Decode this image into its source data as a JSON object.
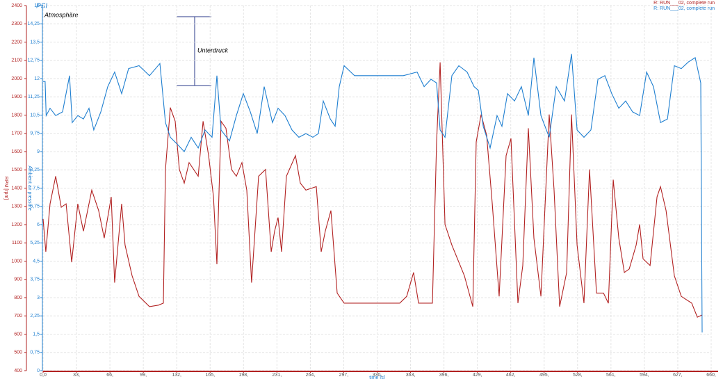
{
  "chart_data": {
    "type": "line",
    "x_label": "time [s]",
    "y_label": "RPM [rpm]",
    "y2_label": "Ambient air pressure",
    "y2_unit": "PSI",
    "annotations": [
      "Atmosphäre",
      "Unterdruck"
    ],
    "grid": true,
    "legend": "top-right",
    "xlim": [
      0,
      660
    ],
    "xticks": [
      {
        "value": 0,
        "label": "0,0"
      },
      {
        "value": 33,
        "label": "33,"
      },
      {
        "value": 66,
        "label": "66,"
      },
      {
        "value": 99,
        "label": "99,"
      },
      {
        "value": 132,
        "label": "132,"
      },
      {
        "value": 165,
        "label": "165,"
      },
      {
        "value": 198,
        "label": "198,"
      },
      {
        "value": 231,
        "label": "231,"
      },
      {
        "value": 264,
        "label": "264,"
      },
      {
        "value": 297,
        "label": "297,"
      },
      {
        "value": 330,
        "label": "330,"
      },
      {
        "value": 363,
        "label": "363,"
      },
      {
        "value": 396,
        "label": "396,"
      },
      {
        "value": 429,
        "label": "429,"
      },
      {
        "value": 462,
        "label": "462,"
      },
      {
        "value": 495,
        "label": "495,"
      },
      {
        "value": 528,
        "label": "528,"
      },
      {
        "value": 561,
        "label": "561,"
      },
      {
        "value": 594,
        "label": "594,"
      },
      {
        "value": 627,
        "label": "627,"
      },
      {
        "value": 660,
        "label": "660,"
      }
    ],
    "ylim": [
      400,
      2400
    ],
    "yticks": [
      400,
      500,
      600,
      700,
      800,
      900,
      1000,
      1100,
      1200,
      1300,
      1400,
      1500,
      1600,
      1700,
      1800,
      1900,
      2000,
      2100,
      2200,
      2300,
      2400
    ],
    "y2lim": [
      0,
      15
    ],
    "y2ticks": [
      0,
      {
        "value": 0.75,
        "label": "0,75"
      },
      {
        "value": 1.5,
        "label": "1,5"
      },
      {
        "value": 2.25,
        "label": "2,25"
      },
      3,
      {
        "value": 3.75,
        "label": "3,75"
      },
      {
        "value": 4.5,
        "label": "4,5"
      },
      {
        "value": 5.25,
        "label": "5,25"
      },
      6,
      {
        "value": 6.75,
        "label": "6,75"
      },
      {
        "value": 7.5,
        "label": "7,5"
      },
      {
        "value": 8.25,
        "label": "8,25"
      },
      9,
      {
        "value": 9.75,
        "label": "9,75"
      },
      {
        "value": 10.5,
        "label": "10,5"
      },
      {
        "value": 11.25,
        "label": "11,25"
      },
      12,
      {
        "value": 12.75,
        "label": "12,75"
      },
      {
        "value": 13.5,
        "label": "13,5"
      },
      {
        "value": 14.25,
        "label": "14,25"
      },
      15
    ],
    "series": [
      {
        "name": "R: RUN___02, complete run",
        "color": "#b22222",
        "x": [
          0,
          2.7,
          6.9,
          12.4,
          17.9,
          22.7,
          28.2,
          34.3,
          39.8,
          48.1,
          54.9,
          60.4,
          67.3,
          70.7,
          77.6,
          81,
          87.9,
          94.8,
          105.1,
          114,
          118.8,
          120.9,
          125.7,
          130.5,
          134.6,
          139.4,
          144.2,
          153.2,
          158,
          163.5,
          168.3,
          171.7,
          175.8,
          180.6,
          186.1,
          190.9,
          196.4,
          201.2,
          206,
          212.9,
          219.8,
          225.3,
          228.7,
          232.1,
          235.6,
          240.4,
          249.3,
          254.1,
          259.6,
          269.9,
          274.7,
          278.8,
          284.3,
          290.5,
          297.4,
          314.6,
          331.7,
          352.3,
          359.2,
          366,
          370.9,
          384.6,
          388.7,
          392.2,
          397,
          403.8,
          416.2,
          424.5,
          427.9,
          432.7,
          438.2,
          443.7,
          450.5,
          457.4,
          462.2,
          469.1,
          473.9,
          479.4,
          484.9,
          491.8,
          500,
          504.8,
          510.3,
          517.2,
          522,
          527.5,
          534.3,
          539.8,
          546.7,
          553.6,
          558.4,
          563.2,
          568.7,
          574.2,
          579,
          585.9,
          589.3,
          592.7,
          599.6,
          606.5,
          609.9,
          615.4,
          623.6,
          630.5,
          640.8,
          646.3,
          651.1
        ],
        "values": [
          1231,
          1051,
          1314,
          1465,
          1295,
          1314,
          994,
          1314,
          1164,
          1389,
          1277,
          1126,
          1352,
          882,
          1314,
          1088,
          920,
          807,
          751,
          759,
          770,
          1502,
          1841,
          1766,
          1502,
          1427,
          1540,
          1465,
          1766,
          1578,
          1352,
          983,
          1766,
          1728,
          1502,
          1465,
          1540,
          1389,
          882,
          1465,
          1502,
          1051,
          1164,
          1239,
          1051,
          1465,
          1578,
          1427,
          1389,
          1408,
          1051,
          1164,
          1277,
          825,
          770,
          770,
          770,
          770,
          807,
          938,
          770,
          770,
          1653,
          2089,
          1201,
          1088,
          920,
          751,
          1653,
          1803,
          1690,
          1314,
          807,
          1578,
          1672,
          770,
          976,
          1728,
          1126,
          807,
          1803,
          1389,
          751,
          938,
          1803,
          1088,
          770,
          1502,
          825,
          825,
          769,
          1446,
          1126,
          938,
          957,
          1088,
          1201,
          1013,
          976,
          1352,
          1408,
          1277,
          920,
          807,
          770,
          693,
          705
        ]
      },
      {
        "name": "R: RUN___02, complete run",
        "color": "#1f7fd0",
        "axis": "y2",
        "x": [
          0,
          2,
          3,
          6.9,
          12.4,
          19.2,
          26.1,
          28.8,
          34.3,
          39.8,
          45.3,
          50.1,
          57,
          63.9,
          70.7,
          77.6,
          84.5,
          94.8,
          105.1,
          115.4,
          120.9,
          125.7,
          132.6,
          139.4,
          146.3,
          153.2,
          160,
          166.9,
          171.7,
          175.8,
          184.1,
          190.9,
          197.8,
          204.7,
          211.5,
          218.4,
          226.6,
          232.1,
          239,
          245.9,
          252.7,
          259.6,
          266.5,
          272,
          276.8,
          283.7,
          288.5,
          292.6,
          297.4,
          307.7,
          318,
          328.3,
          342,
          355.8,
          369.5,
          376.4,
          383.2,
          388.7,
          392.2,
          397,
          403.8,
          410.7,
          418.9,
          425.8,
          429.9,
          434.8,
          441.6,
          448.5,
          453.3,
          458.8,
          465.7,
          472.5,
          479.4,
          484.9,
          491.8,
          500,
          506.9,
          515.1,
          522,
          527.5,
          534.3,
          541.2,
          548.1,
          555,
          561.8,
          568.7,
          575.5,
          582.4,
          589.3,
          596.2,
          603,
          609.9,
          616.8,
          623.6,
          630.5,
          637.4,
          644.2,
          649.7,
          651.1
        ],
        "values": [
          11.88,
          11.88,
          10.48,
          10.78,
          10.48,
          10.63,
          12.12,
          10.19,
          10.48,
          10.34,
          10.78,
          9.89,
          10.63,
          11.67,
          12.27,
          11.38,
          12.41,
          12.53,
          12.12,
          12.62,
          10.19,
          9.59,
          9.3,
          9.0,
          9.59,
          9.15,
          9.89,
          9.59,
          12.12,
          9.89,
          9.44,
          10.48,
          11.38,
          10.63,
          9.74,
          11.67,
          10.19,
          10.78,
          10.48,
          9.89,
          9.59,
          9.74,
          9.59,
          9.74,
          11.08,
          10.34,
          10.04,
          11.67,
          12.53,
          12.12,
          12.12,
          12.12,
          12.12,
          12.12,
          12.27,
          11.67,
          11.97,
          11.82,
          9.89,
          9.59,
          12.12,
          12.53,
          12.27,
          11.67,
          11.52,
          10.04,
          9.15,
          10.48,
          10.04,
          11.38,
          11.08,
          11.67,
          10.48,
          12.86,
          10.48,
          9.59,
          11.67,
          11.08,
          13.01,
          9.89,
          9.59,
          9.89,
          11.97,
          12.12,
          11.38,
          10.78,
          11.08,
          10.63,
          10.48,
          12.27,
          11.67,
          10.19,
          10.34,
          12.53,
          12.41,
          12.68,
          12.86,
          11.82,
          1.57
        ]
      }
    ]
  }
}
